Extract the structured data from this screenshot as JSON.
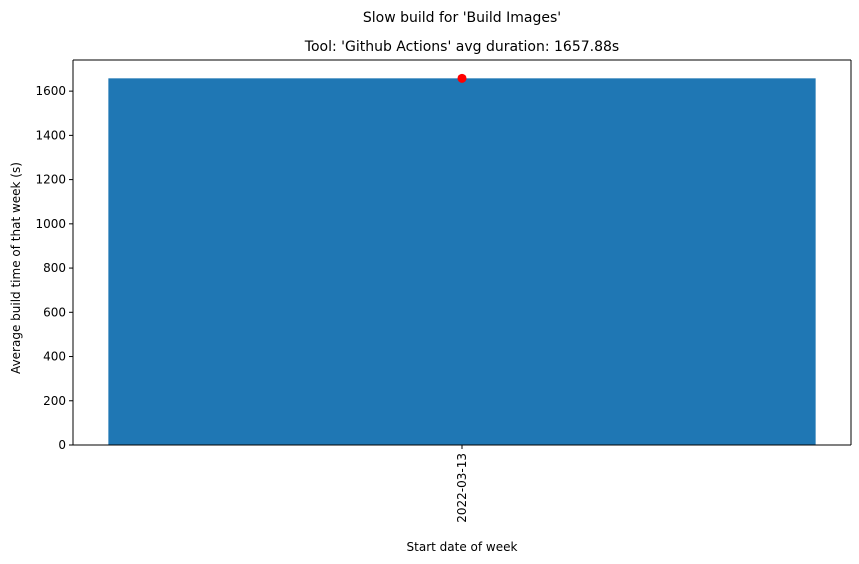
{
  "chart_data": {
    "type": "bar",
    "suptitle": "Slow build for 'Build Images'",
    "title": "Tool: 'Github Actions' avg duration: 1657.88s",
    "xlabel": "Start date of week",
    "ylabel": "Average build time of that week (s)",
    "categories": [
      "2022-03-13"
    ],
    "series": [
      {
        "values": [
          1657.88
        ],
        "color": "#1f77b4"
      }
    ],
    "markers": [
      {
        "category": "2022-03-13",
        "value": 1657.88,
        "color": "#ff0000"
      }
    ],
    "ylim": [
      0,
      1740.77
    ],
    "yticks": [
      0,
      200,
      400,
      600,
      800,
      1000,
      1200,
      1400,
      1600
    ],
    "grid": false,
    "legend": "none"
  }
}
